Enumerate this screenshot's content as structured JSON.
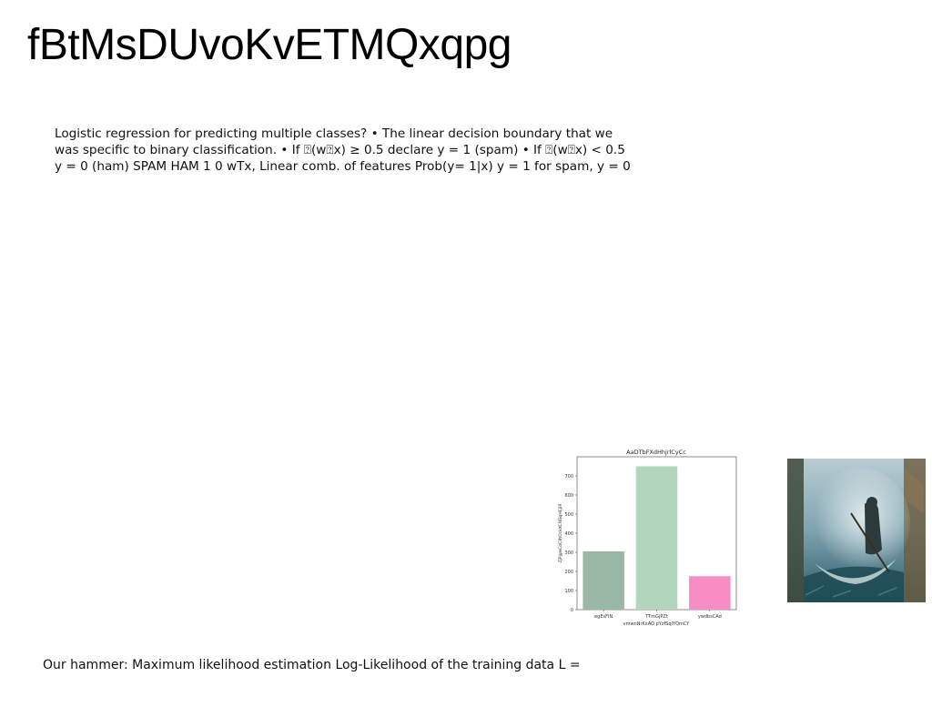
{
  "slide": {
    "title": "fBtMsDUvoKvETMQxqpg",
    "body_lines": [
      "Logistic regression for predicting multiple classes? • The linear decision boundary that we",
      "was specific to binary classification. • If ⍰(w⍰x) ≥ 0.5 declare y = 1 (spam) • If ⍰(w⍰x) < 0.5",
      "y = 0 (ham) SPAM HAM 1 0 wTx, Linear comb. of features Prob(y= 1|x) y = 1 for spam, y = 0"
    ],
    "footer": "Our hammer: Maximum likelihood estimation Log-Likelihood of the training data L ="
  },
  "chart_data": {
    "type": "bar",
    "title": "AaDTbFXdHhjrlCyCc",
    "xlabel": "vmwnNrKxAO pYzfSqIYQmCY",
    "ylabel": "ZjPjgwCoCBtOckXCNGqHCjlR",
    "categories": [
      "egEsFIN",
      "TTmGjPZt",
      "ywdbsCAd"
    ],
    "values": [
      305,
      750,
      175
    ],
    "colors": [
      "#9ab8a5",
      "#b2d6bd",
      "#f88dc4"
    ],
    "ylim": [
      0,
      800
    ],
    "yticks": [
      0,
      100,
      200,
      300,
      400,
      500,
      600,
      700
    ],
    "grid": false
  },
  "image": {
    "subject": "painting-of-cloaked-figure-in-boat"
  }
}
